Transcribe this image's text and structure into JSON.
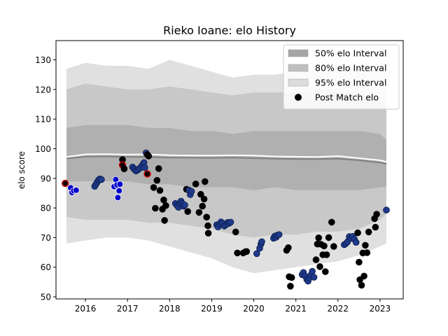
{
  "chart_data": {
    "type": "scatter",
    "title": "Rieko Ioane: elo History",
    "xlabel": "",
    "ylabel": "elo score",
    "xlim": [
      2015.3,
      2023.55
    ],
    "ylim": [
      49.3,
      136.5
    ],
    "x_ticks": [
      {
        "value": 2016,
        "label": "2016"
      },
      {
        "value": 2017,
        "label": "2017"
      },
      {
        "value": 2018,
        "label": "2018"
      },
      {
        "value": 2019,
        "label": "2019"
      },
      {
        "value": 2020,
        "label": "2020"
      },
      {
        "value": 2021,
        "label": "2021"
      },
      {
        "value": 2022,
        "label": "2022"
      },
      {
        "value": 2023,
        "label": "2023"
      }
    ],
    "y_ticks": [
      {
        "value": 50,
        "label": "50"
      },
      {
        "value": 60,
        "label": "60"
      },
      {
        "value": 70,
        "label": "70"
      },
      {
        "value": 80,
        "label": "80"
      },
      {
        "value": 90,
        "label": "90"
      },
      {
        "value": 100,
        "label": "100"
      },
      {
        "value": 110,
        "label": "110"
      },
      {
        "value": 120,
        "label": "120"
      },
      {
        "value": 130,
        "label": "130"
      }
    ],
    "grid": false,
    "legend_position": "top-right",
    "legend": [
      {
        "label": "50% elo Interval",
        "kind": "patch",
        "color": "#a6a6a6"
      },
      {
        "label": "80% elo Interval",
        "kind": "patch",
        "color": "#bfbfbf"
      },
      {
        "label": "95% elo Interval",
        "kind": "patch",
        "color": "#dcdcdc"
      },
      {
        "label": "Post Match elo",
        "kind": "marker",
        "color": "#000000"
      }
    ],
    "colors": {
      "band95": "#e0e0e0",
      "band80": "#c8c8c8",
      "band50": "#b0b0b0",
      "mean_line": "#ffffff",
      "median_line": "#808080",
      "point_black": "#000000",
      "point_navy": "#1f3a8a",
      "point_blue": "#0000cc",
      "point_red_edge": "#cc0000"
    },
    "bands": {
      "x": [
        2015.55,
        2016.0,
        2016.5,
        2017.0,
        2017.5,
        2018.0,
        2018.5,
        2019.0,
        2019.5,
        2020.0,
        2020.5,
        2021.0,
        2021.5,
        2022.0,
        2022.5,
        2023.0,
        2023.15
      ],
      "p95_hi": [
        127,
        129,
        128,
        128,
        127,
        130,
        128,
        126,
        124,
        125,
        125,
        126,
        127,
        128,
        127,
        126,
        125
      ],
      "p95_lo": [
        68,
        69,
        70,
        70,
        69,
        67,
        65,
        63,
        60,
        58,
        59,
        60,
        61,
        62,
        64,
        67,
        68
      ],
      "p80_hi": [
        120,
        122,
        121,
        120,
        120,
        121,
        120,
        119,
        118,
        119,
        119,
        119,
        120,
        119,
        119,
        116,
        114
      ],
      "p80_lo": [
        77,
        76,
        76,
        76,
        75,
        75,
        74,
        73,
        71,
        70,
        71,
        71,
        72,
        72,
        73,
        76,
        78
      ],
      "p50_hi": [
        107,
        108,
        108,
        108,
        107,
        107,
        106,
        106,
        105,
        106,
        106,
        106,
        106,
        106,
        106,
        105,
        103
      ],
      "p50_lo": [
        89,
        89,
        89,
        89,
        88,
        88,
        87,
        87,
        87,
        86,
        87,
        86,
        86,
        86,
        86,
        87,
        87
      ],
      "mean": [
        97.2,
        98.1,
        98.2,
        98.0,
        98.1,
        97.8,
        97.7,
        97.7,
        97.8,
        97.7,
        97.4,
        97.3,
        97.2,
        97.5,
        96.8,
        96.1,
        95.6
      ],
      "median": [
        96.7,
        97.3,
        97.4,
        97.2,
        97.2,
        97.0,
        97.0,
        96.9,
        97.0,
        96.8,
        96.6,
        96.5,
        96.5,
        96.6,
        96.1,
        95.3,
        94.9
      ]
    },
    "series": [
      {
        "name": "Post Match elo",
        "points": [
          {
            "x": 2015.52,
            "y": 88.3,
            "s": "red"
          },
          {
            "x": 2015.65,
            "y": 86.8,
            "s": "blue"
          },
          {
            "x": 2015.68,
            "y": 85.2,
            "s": "blue"
          },
          {
            "x": 2015.72,
            "y": 85.8,
            "s": "blue"
          },
          {
            "x": 2015.78,
            "y": 86.0,
            "s": "blue"
          },
          {
            "x": 2016.22,
            "y": 87.3,
            "s": "navy"
          },
          {
            "x": 2016.25,
            "y": 88.0,
            "s": "navy"
          },
          {
            "x": 2016.28,
            "y": 88.7,
            "s": "navy"
          },
          {
            "x": 2016.31,
            "y": 89.4,
            "s": "navy"
          },
          {
            "x": 2016.34,
            "y": 89.8,
            "s": "navy"
          },
          {
            "x": 2016.38,
            "y": 89.6,
            "s": "navy"
          },
          {
            "x": 2016.68,
            "y": 87.2,
            "s": "blue"
          },
          {
            "x": 2016.72,
            "y": 89.6,
            "s": "blue"
          },
          {
            "x": 2016.75,
            "y": 87.8,
            "s": "blue"
          },
          {
            "x": 2016.77,
            "y": 83.5,
            "s": "blue"
          },
          {
            "x": 2016.8,
            "y": 85.8,
            "s": "blue"
          },
          {
            "x": 2016.82,
            "y": 88.0,
            "s": "blue"
          },
          {
            "x": 2016.88,
            "y": 96.3,
            "s": "black"
          },
          {
            "x": 2016.88,
            "y": 94.5,
            "s": "red"
          },
          {
            "x": 2016.92,
            "y": 93.2,
            "s": "black"
          },
          {
            "x": 2017.12,
            "y": 93.8,
            "s": "navy"
          },
          {
            "x": 2017.16,
            "y": 93.1,
            "s": "navy"
          },
          {
            "x": 2017.2,
            "y": 92.5,
            "s": "navy"
          },
          {
            "x": 2017.24,
            "y": 92.8,
            "s": "navy"
          },
          {
            "x": 2017.28,
            "y": 93.3,
            "s": "navy"
          },
          {
            "x": 2017.32,
            "y": 93.8,
            "s": "navy"
          },
          {
            "x": 2017.36,
            "y": 94.6,
            "s": "navy"
          },
          {
            "x": 2017.39,
            "y": 95.3,
            "s": "navy"
          },
          {
            "x": 2017.41,
            "y": 93.6,
            "s": "navy"
          },
          {
            "x": 2017.44,
            "y": 98.6,
            "s": "navy"
          },
          {
            "x": 2017.47,
            "y": 98.0,
            "s": "black"
          },
          {
            "x": 2017.47,
            "y": 91.5,
            "s": "red"
          },
          {
            "x": 2017.5,
            "y": 97.5,
            "s": "black"
          },
          {
            "x": 2017.62,
            "y": 86.9,
            "s": "black"
          },
          {
            "x": 2017.66,
            "y": 79.9,
            "s": "black"
          },
          {
            "x": 2017.7,
            "y": 89.3,
            "s": "black"
          },
          {
            "x": 2017.74,
            "y": 93.3,
            "s": "black"
          },
          {
            "x": 2017.77,
            "y": 85.9,
            "s": "black"
          },
          {
            "x": 2017.83,
            "y": 79.6,
            "s": "black"
          },
          {
            "x": 2017.86,
            "y": 82.7,
            "s": "black"
          },
          {
            "x": 2017.88,
            "y": 75.8,
            "s": "black"
          },
          {
            "x": 2017.91,
            "y": 80.8,
            "s": "black"
          },
          {
            "x": 2018.14,
            "y": 81.5,
            "s": "navy"
          },
          {
            "x": 2018.18,
            "y": 80.8,
            "s": "navy"
          },
          {
            "x": 2018.21,
            "y": 80.2,
            "s": "navy"
          },
          {
            "x": 2018.24,
            "y": 81.5,
            "s": "navy"
          },
          {
            "x": 2018.27,
            "y": 82.3,
            "s": "navy"
          },
          {
            "x": 2018.3,
            "y": 81.5,
            "s": "navy"
          },
          {
            "x": 2018.33,
            "y": 80.6,
            "s": "navy"
          },
          {
            "x": 2018.36,
            "y": 81.0,
            "s": "navy"
          },
          {
            "x": 2018.4,
            "y": 86.3,
            "s": "black"
          },
          {
            "x": 2018.43,
            "y": 78.8,
            "s": "black"
          },
          {
            "x": 2018.46,
            "y": 86.0,
            "s": "navy"
          },
          {
            "x": 2018.49,
            "y": 84.5,
            "s": "navy"
          },
          {
            "x": 2018.52,
            "y": 85.6,
            "s": "navy"
          },
          {
            "x": 2018.62,
            "y": 88.1,
            "s": "black"
          },
          {
            "x": 2018.7,
            "y": 78.5,
            "s": "black"
          },
          {
            "x": 2018.74,
            "y": 84.6,
            "s": "black"
          },
          {
            "x": 2018.78,
            "y": 80.6,
            "s": "black"
          },
          {
            "x": 2018.82,
            "y": 83.0,
            "s": "black"
          },
          {
            "x": 2018.84,
            "y": 88.9,
            "s": "black"
          },
          {
            "x": 2018.88,
            "y": 76.9,
            "s": "black"
          },
          {
            "x": 2018.91,
            "y": 74.0,
            "s": "black"
          },
          {
            "x": 2018.92,
            "y": 71.5,
            "s": "black"
          },
          {
            "x": 2019.12,
            "y": 74.3,
            "s": "navy"
          },
          {
            "x": 2019.15,
            "y": 73.6,
            "s": "navy"
          },
          {
            "x": 2019.19,
            "y": 74.6,
            "s": "navy"
          },
          {
            "x": 2019.22,
            "y": 75.3,
            "s": "navy"
          },
          {
            "x": 2019.26,
            "y": 74.8,
            "s": "navy"
          },
          {
            "x": 2019.3,
            "y": 73.9,
            "s": "navy"
          },
          {
            "x": 2019.34,
            "y": 74.4,
            "s": "navy"
          },
          {
            "x": 2019.38,
            "y": 75.1,
            "s": "navy"
          },
          {
            "x": 2019.41,
            "y": 74.8,
            "s": "navy"
          },
          {
            "x": 2019.45,
            "y": 75.2,
            "s": "navy"
          },
          {
            "x": 2019.57,
            "y": 71.9,
            "s": "black"
          },
          {
            "x": 2019.61,
            "y": 64.8,
            "s": "black"
          },
          {
            "x": 2019.75,
            "y": 64.8,
            "s": "black"
          },
          {
            "x": 2019.8,
            "y": 65.2,
            "s": "black"
          },
          {
            "x": 2019.83,
            "y": 65.3,
            "s": "black"
          },
          {
            "x": 2020.07,
            "y": 64.6,
            "s": "navy"
          },
          {
            "x": 2020.14,
            "y": 66.4,
            "s": "navy"
          },
          {
            "x": 2020.17,
            "y": 67.8,
            "s": "navy"
          },
          {
            "x": 2020.19,
            "y": 68.6,
            "s": "navy"
          },
          {
            "x": 2020.47,
            "y": 69.8,
            "s": "navy"
          },
          {
            "x": 2020.5,
            "y": 70.5,
            "s": "navy"
          },
          {
            "x": 2020.53,
            "y": 70.1,
            "s": "navy"
          },
          {
            "x": 2020.56,
            "y": 70.8,
            "s": "navy"
          },
          {
            "x": 2020.6,
            "y": 71.0,
            "s": "navy"
          },
          {
            "x": 2020.78,
            "y": 65.7,
            "s": "black"
          },
          {
            "x": 2020.82,
            "y": 66.6,
            "s": "black"
          },
          {
            "x": 2020.84,
            "y": 56.8,
            "s": "black"
          },
          {
            "x": 2020.87,
            "y": 53.6,
            "s": "black"
          },
          {
            "x": 2020.9,
            "y": 56.5,
            "s": "black"
          },
          {
            "x": 2021.15,
            "y": 57.5,
            "s": "navy"
          },
          {
            "x": 2021.18,
            "y": 58.2,
            "s": "navy"
          },
          {
            "x": 2021.22,
            "y": 57.0,
            "s": "navy"
          },
          {
            "x": 2021.26,
            "y": 55.9,
            "s": "navy"
          },
          {
            "x": 2021.29,
            "y": 55.3,
            "s": "navy"
          },
          {
            "x": 2021.32,
            "y": 56.4,
            "s": "navy"
          },
          {
            "x": 2021.36,
            "y": 57.4,
            "s": "navy"
          },
          {
            "x": 2021.39,
            "y": 58.6,
            "s": "navy"
          },
          {
            "x": 2021.43,
            "y": 56.6,
            "s": "navy"
          },
          {
            "x": 2021.48,
            "y": 62.5,
            "s": "black"
          },
          {
            "x": 2021.51,
            "y": 67.8,
            "s": "black"
          },
          {
            "x": 2021.54,
            "y": 69.9,
            "s": "black"
          },
          {
            "x": 2021.57,
            "y": 60.2,
            "s": "black"
          },
          {
            "x": 2021.6,
            "y": 67.7,
            "s": "black"
          },
          {
            "x": 2021.64,
            "y": 64.2,
            "s": "black"
          },
          {
            "x": 2021.67,
            "y": 67.2,
            "s": "black"
          },
          {
            "x": 2021.7,
            "y": 58.5,
            "s": "black"
          },
          {
            "x": 2021.73,
            "y": 64.2,
            "s": "black"
          },
          {
            "x": 2021.78,
            "y": 70.0,
            "s": "black"
          },
          {
            "x": 2021.85,
            "y": 75.2,
            "s": "black"
          },
          {
            "x": 2021.9,
            "y": 67.0,
            "s": "black"
          },
          {
            "x": 2022.15,
            "y": 67.6,
            "s": "navy"
          },
          {
            "x": 2022.19,
            "y": 68.0,
            "s": "navy"
          },
          {
            "x": 2022.23,
            "y": 68.6,
            "s": "navy"
          },
          {
            "x": 2022.27,
            "y": 70.3,
            "s": "navy"
          },
          {
            "x": 2022.31,
            "y": 69.8,
            "s": "navy"
          },
          {
            "x": 2022.35,
            "y": 70.4,
            "s": "navy"
          },
          {
            "x": 2022.39,
            "y": 69.4,
            "s": "navy"
          },
          {
            "x": 2022.43,
            "y": 68.4,
            "s": "navy"
          },
          {
            "x": 2022.47,
            "y": 71.6,
            "s": "black"
          },
          {
            "x": 2022.5,
            "y": 61.7,
            "s": "black"
          },
          {
            "x": 2022.52,
            "y": 55.8,
            "s": "black"
          },
          {
            "x": 2022.56,
            "y": 53.9,
            "s": "black"
          },
          {
            "x": 2022.59,
            "y": 64.8,
            "s": "black"
          },
          {
            "x": 2022.62,
            "y": 57.0,
            "s": "black"
          },
          {
            "x": 2022.65,
            "y": 67.4,
            "s": "black"
          },
          {
            "x": 2022.69,
            "y": 64.9,
            "s": "black"
          },
          {
            "x": 2022.73,
            "y": 71.9,
            "s": "black"
          },
          {
            "x": 2022.87,
            "y": 76.4,
            "s": "black"
          },
          {
            "x": 2022.89,
            "y": 73.5,
            "s": "black"
          },
          {
            "x": 2022.92,
            "y": 77.9,
            "s": "black"
          },
          {
            "x": 2023.15,
            "y": 79.3,
            "s": "navy"
          }
        ]
      }
    ]
  }
}
